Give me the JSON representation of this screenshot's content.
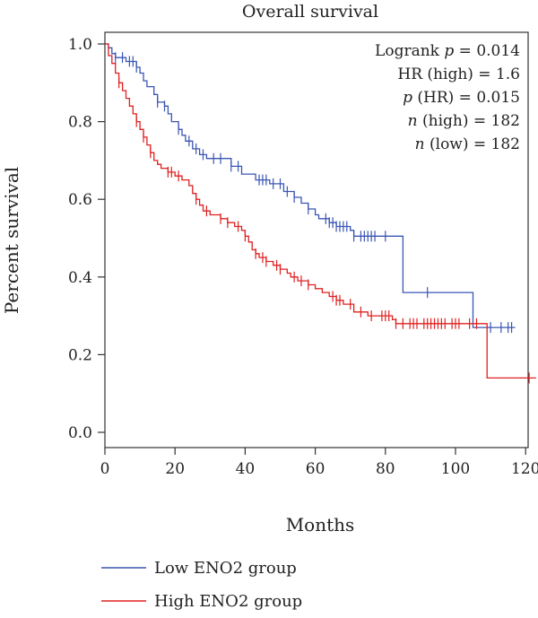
{
  "chart_data": {
    "type": "line",
    "title": "Overall survival",
    "xlabel": "Months",
    "ylabel": "Percent survival",
    "xlim": [
      0,
      125
    ],
    "ylim": [
      0,
      1.04
    ],
    "x_ticks": [
      "0",
      "20",
      "40",
      "60",
      "80",
      "100",
      "120"
    ],
    "x_tick_values": [
      0,
      20,
      40,
      60,
      80,
      100,
      120
    ],
    "y_ticks": [
      "0.0",
      "0.2",
      "0.4",
      "0.6",
      "0.8",
      "1.0"
    ],
    "y_tick_values": [
      0,
      0.2,
      0.4,
      0.6,
      0.8,
      1.0
    ],
    "grid": false,
    "legend_position": "bottom-left",
    "annotations": [
      {
        "pre": "Logrank ",
        "em": "p",
        "post": " = 0.014"
      },
      {
        "pre": "HR (high) = 1.6",
        "em": "",
        "post": ""
      },
      {
        "pre": "",
        "em": "p",
        "post": " (HR) = 0.015"
      },
      {
        "pre": "",
        "em": "n",
        "post": " (high) = 182"
      },
      {
        "pre": "",
        "em": "n",
        "post": " (low) = 182"
      }
    ],
    "series": [
      {
        "name": "Low ENO2 group",
        "color": "#3a55b4",
        "steps": [
          [
            0,
            1.0
          ],
          [
            1,
            0.99
          ],
          [
            2,
            0.975
          ],
          [
            3,
            0.965
          ],
          [
            6,
            0.955
          ],
          [
            9,
            0.94
          ],
          [
            10,
            0.925
          ],
          [
            11,
            0.905
          ],
          [
            12,
            0.89
          ],
          [
            14,
            0.87
          ],
          [
            15,
            0.85
          ],
          [
            17,
            0.84
          ],
          [
            18,
            0.82
          ],
          [
            19,
            0.8
          ],
          [
            21,
            0.78
          ],
          [
            22,
            0.765
          ],
          [
            23,
            0.75
          ],
          [
            25,
            0.73
          ],
          [
            27,
            0.715
          ],
          [
            29,
            0.705
          ],
          [
            36,
            0.685
          ],
          [
            39,
            0.665
          ],
          [
            43,
            0.65
          ],
          [
            47,
            0.64
          ],
          [
            51,
            0.62
          ],
          [
            54,
            0.605
          ],
          [
            56,
            0.59
          ],
          [
            58,
            0.575
          ],
          [
            60,
            0.56
          ],
          [
            61,
            0.55
          ],
          [
            64,
            0.54
          ],
          [
            66,
            0.53
          ],
          [
            70,
            0.52
          ],
          [
            71,
            0.505
          ],
          [
            85,
            0.36
          ],
          [
            105,
            0.27
          ],
          [
            117,
            0.27
          ]
        ],
        "censor": [
          3,
          5,
          7,
          8,
          9,
          15,
          17,
          21,
          24,
          26,
          28,
          31,
          33,
          36,
          38,
          44,
          45,
          46,
          48,
          50,
          52,
          54,
          58,
          63,
          64,
          65,
          66,
          67,
          68,
          69,
          71,
          73,
          74,
          75,
          76,
          77,
          80,
          92,
          110,
          113,
          115,
          116
        ]
      },
      {
        "name": "High ENO2 group",
        "color": "#e02020",
        "steps": [
          [
            0,
            1.0
          ],
          [
            1,
            0.97
          ],
          [
            2,
            0.95
          ],
          [
            3,
            0.925
          ],
          [
            4,
            0.9
          ],
          [
            5,
            0.88
          ],
          [
            6,
            0.86
          ],
          [
            7,
            0.84
          ],
          [
            8,
            0.82
          ],
          [
            9,
            0.8
          ],
          [
            10,
            0.78
          ],
          [
            11,
            0.76
          ],
          [
            12,
            0.74
          ],
          [
            13,
            0.72
          ],
          [
            14,
            0.7
          ],
          [
            15,
            0.69
          ],
          [
            16,
            0.68
          ],
          [
            18,
            0.67
          ],
          [
            20,
            0.66
          ],
          [
            22,
            0.65
          ],
          [
            24,
            0.635
          ],
          [
            25,
            0.615
          ],
          [
            26,
            0.6
          ],
          [
            27,
            0.585
          ],
          [
            28,
            0.57
          ],
          [
            30,
            0.56
          ],
          [
            33,
            0.55
          ],
          [
            35,
            0.54
          ],
          [
            37,
            0.53
          ],
          [
            39,
            0.52
          ],
          [
            40,
            0.505
          ],
          [
            41,
            0.49
          ],
          [
            42,
            0.47
          ],
          [
            43,
            0.46
          ],
          [
            44,
            0.45
          ],
          [
            46,
            0.44
          ],
          [
            48,
            0.43
          ],
          [
            50,
            0.42
          ],
          [
            52,
            0.41
          ],
          [
            53,
            0.4
          ],
          [
            55,
            0.39
          ],
          [
            58,
            0.38
          ],
          [
            60,
            0.37
          ],
          [
            62,
            0.36
          ],
          [
            64,
            0.35
          ],
          [
            66,
            0.34
          ],
          [
            68,
            0.33
          ],
          [
            71,
            0.31
          ],
          [
            75,
            0.3
          ],
          [
            82,
            0.29
          ],
          [
            83,
            0.28
          ],
          [
            109,
            0.14
          ],
          [
            123,
            0.14
          ]
        ],
        "censor": [
          4,
          9,
          11,
          13,
          18,
          19,
          21,
          26,
          29,
          33,
          35,
          38,
          40,
          43,
          45,
          46,
          49,
          50,
          54,
          56,
          58,
          65,
          66,
          67,
          70,
          73,
          76,
          79,
          80,
          81,
          83,
          85,
          87,
          88,
          89,
          91,
          92,
          93,
          94,
          95,
          96,
          97,
          99,
          100,
          101,
          104,
          106,
          121
        ]
      }
    ]
  }
}
